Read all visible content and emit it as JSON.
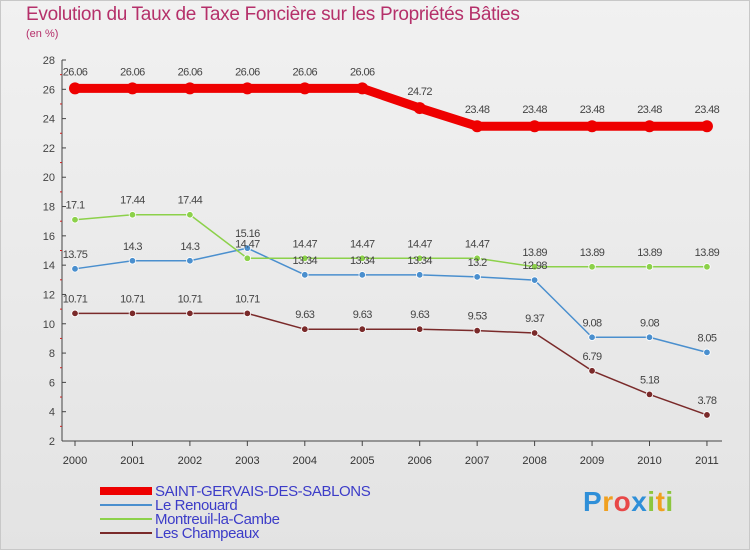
{
  "title": "Evolution du Taux de Taxe Foncière sur les Propriétés Bâties",
  "subtitle": "(en %)",
  "logo": "Proxiti",
  "chart_data": {
    "type": "line",
    "title": "Evolution du Taux de Taxe Foncière sur les Propriétés Bâties",
    "ylabel": "(en %)",
    "xlabel": "",
    "ylim": [
      2,
      28
    ],
    "yticks": [
      2,
      4,
      6,
      8,
      10,
      12,
      14,
      16,
      18,
      20,
      22,
      24,
      26,
      28
    ],
    "categories": [
      "2000",
      "2001",
      "2002",
      "2003",
      "2004",
      "2005",
      "2006",
      "2007",
      "2008",
      "2009",
      "2010",
      "2011"
    ],
    "series": [
      {
        "name": "SAINT-GERVAIS-DES-SABLONS",
        "color": "#ee0000",
        "values": [
          26.06,
          26.06,
          26.06,
          26.06,
          26.06,
          26.06,
          24.72,
          23.48,
          23.48,
          23.48,
          23.48,
          23.48
        ],
        "labels": [
          "26.06",
          "26.06",
          "26.06",
          "26.06",
          "26.06",
          "26.06",
          "24.72",
          "23.48",
          "23.48",
          "23.48",
          "23.48",
          "23.48"
        ]
      },
      {
        "name": "Le Renouard",
        "color": "#4a8fce",
        "values": [
          13.75,
          14.3,
          14.3,
          15.16,
          13.34,
          13.34,
          13.34,
          13.2,
          12.98,
          9.08,
          9.08,
          8.05
        ],
        "labels": [
          "13.75",
          "14.3",
          "14.3",
          "15.16",
          "13.34",
          "13.34",
          "13.34",
          "13.2",
          "12.98",
          "9.08",
          "9.08",
          "8.05"
        ]
      },
      {
        "name": "Montreuil-la-Cambe",
        "color": "#8cd14a",
        "values": [
          17.1,
          17.44,
          17.44,
          14.47,
          14.47,
          14.47,
          14.47,
          14.47,
          13.89,
          13.89,
          13.89,
          13.89
        ],
        "labels": [
          "17.1",
          "17.44",
          "17.44",
          "14.47",
          "14.47",
          "14.47",
          "14.47",
          "14.47",
          "13.89",
          "13.89",
          "13.89",
          "13.89"
        ]
      },
      {
        "name": "Les Champeaux",
        "color": "#7a2a2a",
        "values": [
          10.71,
          10.71,
          10.71,
          10.71,
          9.63,
          9.63,
          9.63,
          9.53,
          9.37,
          6.79,
          5.18,
          3.78
        ],
        "labels": [
          "10.71",
          "10.71",
          "10.71",
          "10.71",
          "9.63",
          "9.63",
          "9.63",
          "9.53",
          "9.37",
          "6.79",
          "5.18",
          "3.78"
        ]
      }
    ],
    "legend_position": "bottom-left",
    "grid": false
  }
}
